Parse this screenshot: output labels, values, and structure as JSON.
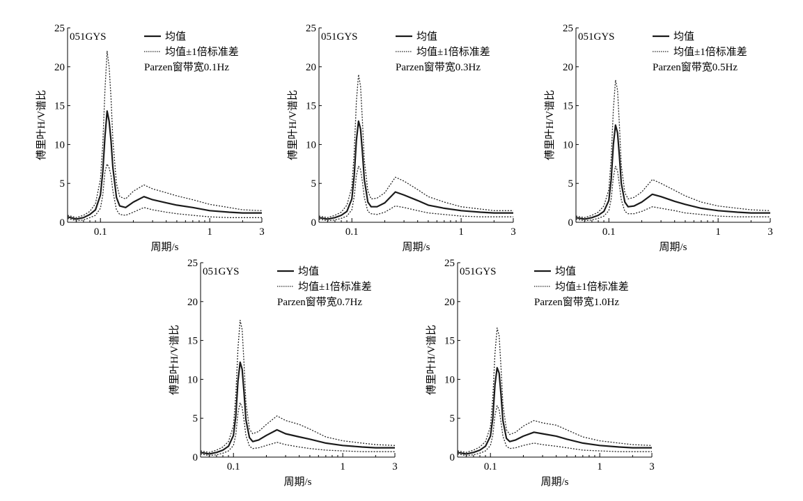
{
  "chart_data": [
    {
      "type": "line",
      "station": "051GYS",
      "bandwidth_label": "Parzen窗带宽0.1Hz",
      "xlabel": "周期/s",
      "ylabel": "傅里叶H/V谱比",
      "xscale": "log",
      "xlim": [
        0.05,
        3
      ],
      "ylim": [
        0,
        25
      ],
      "xticks": [
        "0.1",
        "1",
        "3"
      ],
      "yticks": [
        "0",
        "5",
        "10",
        "15",
        "20",
        "25"
      ],
      "legend": [
        "均值",
        "均值±1倍标准差"
      ],
      "x": [
        0.05,
        0.06,
        0.07,
        0.08,
        0.09,
        0.1,
        0.105,
        0.11,
        0.115,
        0.12,
        0.125,
        0.13,
        0.14,
        0.15,
        0.17,
        0.2,
        0.25,
        0.3,
        0.4,
        0.5,
        0.7,
        1.0,
        1.5,
        2.0,
        3.0
      ],
      "series": [
        {
          "name": "均值",
          "values": [
            0.7,
            0.4,
            0.6,
            1.0,
            1.6,
            3.5,
            6.5,
            11.0,
            14.3,
            13.0,
            10.5,
            7.0,
            3.2,
            2.1,
            1.9,
            2.6,
            3.3,
            2.9,
            2.5,
            2.2,
            1.9,
            1.5,
            1.3,
            1.2,
            1.2
          ]
        },
        {
          "name": "均值+1倍标准差",
          "values": [
            0.9,
            0.6,
            0.9,
            1.4,
            2.4,
            5.5,
            10.0,
            17.0,
            22.0,
            20.0,
            16.0,
            10.5,
            5.0,
            3.3,
            3.0,
            4.0,
            4.8,
            4.3,
            3.8,
            3.4,
            2.9,
            2.3,
            1.9,
            1.6,
            1.5
          ]
        },
        {
          "name": "均值-1倍标准差",
          "values": [
            0.5,
            0.2,
            0.3,
            0.6,
            0.9,
            1.8,
            3.5,
            6.5,
            7.5,
            7.0,
            6.0,
            4.0,
            1.6,
            1.0,
            0.9,
            1.3,
            1.9,
            1.6,
            1.3,
            1.1,
            0.9,
            0.7,
            0.6,
            0.6,
            0.6
          ]
        }
      ]
    },
    {
      "type": "line",
      "station": "051GYS",
      "bandwidth_label": "Parzen窗带宽0.3Hz",
      "xlabel": "周期/s",
      "ylabel": "傅里叶H/V谱比",
      "xscale": "log",
      "xlim": [
        0.05,
        3
      ],
      "ylim": [
        0,
        25
      ],
      "xticks": [
        "0.1",
        "1",
        "3"
      ],
      "yticks": [
        "0",
        "5",
        "10",
        "15",
        "20",
        "25"
      ],
      "legend": [
        "均值",
        "均值±1倍标准差"
      ],
      "x": [
        0.05,
        0.06,
        0.07,
        0.08,
        0.09,
        0.1,
        0.105,
        0.11,
        0.115,
        0.12,
        0.125,
        0.13,
        0.14,
        0.15,
        0.17,
        0.2,
        0.25,
        0.3,
        0.4,
        0.5,
        0.7,
        1.0,
        1.5,
        2.0,
        3.0
      ],
      "series": [
        {
          "name": "均值",
          "values": [
            0.6,
            0.4,
            0.6,
            0.9,
            1.4,
            3.0,
            6.0,
            10.5,
            13.0,
            12.0,
            9.0,
            5.5,
            2.6,
            2.0,
            2.0,
            2.5,
            3.9,
            3.5,
            2.8,
            2.2,
            1.8,
            1.5,
            1.3,
            1.2,
            1.2
          ]
        },
        {
          "name": "均值+1倍标准差",
          "values": [
            0.8,
            0.6,
            0.9,
            1.3,
            2.2,
            4.5,
            9.0,
            15.5,
            19.0,
            17.5,
            13.0,
            8.0,
            4.0,
            3.0,
            3.1,
            3.8,
            5.8,
            5.3,
            4.2,
            3.3,
            2.6,
            2.0,
            1.7,
            1.5,
            1.5
          ]
        },
        {
          "name": "均值-1倍标准差",
          "values": [
            0.4,
            0.2,
            0.3,
            0.5,
            0.8,
            1.6,
            3.3,
            6.0,
            7.2,
            6.8,
            5.2,
            3.2,
            1.4,
            1.1,
            1.0,
            1.3,
            2.1,
            1.9,
            1.5,
            1.2,
            1.0,
            0.8,
            0.7,
            0.7,
            0.7
          ]
        }
      ]
    },
    {
      "type": "line",
      "station": "051GYS",
      "bandwidth_label": "Parzen窗带宽0.5Hz",
      "xlabel": "周期/s",
      "ylabel": "傅里叶H/V谱比",
      "xscale": "log",
      "xlim": [
        0.05,
        3
      ],
      "ylim": [
        0,
        25
      ],
      "xticks": [
        "0.1",
        "1",
        "3"
      ],
      "yticks": [
        "0",
        "5",
        "10",
        "15",
        "20",
        "25"
      ],
      "legend": [
        "均值",
        "均值±1倍标准差"
      ],
      "x": [
        0.05,
        0.06,
        0.07,
        0.08,
        0.09,
        0.1,
        0.105,
        0.11,
        0.115,
        0.12,
        0.125,
        0.13,
        0.14,
        0.15,
        0.17,
        0.2,
        0.25,
        0.3,
        0.4,
        0.5,
        0.7,
        1.0,
        1.5,
        2.0,
        3.0
      ],
      "series": [
        {
          "name": "均值",
          "values": [
            0.6,
            0.4,
            0.6,
            0.9,
            1.4,
            2.8,
            5.5,
            10.0,
            12.5,
            11.5,
            8.5,
            5.0,
            2.6,
            2.0,
            2.1,
            2.6,
            3.6,
            3.3,
            2.7,
            2.3,
            1.8,
            1.5,
            1.3,
            1.2,
            1.2
          ]
        },
        {
          "name": "均值+1倍标准差",
          "values": [
            0.8,
            0.6,
            0.9,
            1.3,
            2.1,
            4.2,
            8.3,
            14.5,
            18.3,
            17.0,
            12.5,
            7.3,
            3.8,
            3.0,
            3.2,
            3.9,
            5.5,
            5.0,
            4.1,
            3.4,
            2.6,
            2.1,
            1.8,
            1.6,
            1.5
          ]
        },
        {
          "name": "均值-1倍标准差",
          "values": [
            0.4,
            0.2,
            0.3,
            0.5,
            0.8,
            1.5,
            3.0,
            5.8,
            7.2,
            6.6,
            4.8,
            2.9,
            1.4,
            1.1,
            1.1,
            1.4,
            2.0,
            1.8,
            1.5,
            1.2,
            1.0,
            0.8,
            0.7,
            0.7,
            0.7
          ]
        }
      ]
    },
    {
      "type": "line",
      "station": "051GYS",
      "bandwidth_label": "Parzen窗带宽0.7Hz",
      "xlabel": "周期/s",
      "ylabel": "傅里叶H/V谱比",
      "xscale": "log",
      "xlim": [
        0.05,
        3
      ],
      "ylim": [
        0,
        25
      ],
      "xticks": [
        "0.1",
        "1",
        "3"
      ],
      "yticks": [
        "0",
        "5",
        "10",
        "15",
        "20",
        "25"
      ],
      "legend": [
        "均值",
        "均值±1倍标准差"
      ],
      "x": [
        0.05,
        0.06,
        0.07,
        0.08,
        0.09,
        0.1,
        0.105,
        0.11,
        0.115,
        0.12,
        0.125,
        0.13,
        0.14,
        0.15,
        0.17,
        0.2,
        0.25,
        0.3,
        0.4,
        0.5,
        0.7,
        1.0,
        1.5,
        2.0,
        3.0
      ],
      "series": [
        {
          "name": "均值",
          "values": [
            0.6,
            0.4,
            0.6,
            0.9,
            1.4,
            2.8,
            5.3,
            9.8,
            12.2,
            11.3,
            8.3,
            4.8,
            2.5,
            2.0,
            2.2,
            2.8,
            3.5,
            3.0,
            2.6,
            2.3,
            1.8,
            1.5,
            1.3,
            1.2,
            1.2
          ]
        },
        {
          "name": "均值+1倍标准差",
          "values": [
            0.8,
            0.6,
            0.9,
            1.3,
            2.0,
            4.0,
            8.0,
            14.0,
            17.6,
            16.4,
            12.0,
            7.0,
            3.6,
            3.0,
            3.3,
            4.2,
            5.3,
            4.7,
            4.2,
            3.6,
            2.6,
            2.1,
            1.8,
            1.6,
            1.5
          ]
        },
        {
          "name": "均值-1倍标准差",
          "values": [
            0.4,
            0.2,
            0.3,
            0.5,
            0.8,
            1.5,
            2.9,
            5.7,
            7.0,
            6.4,
            4.7,
            2.8,
            1.4,
            1.1,
            1.2,
            1.5,
            1.9,
            1.6,
            1.3,
            1.1,
            0.9,
            0.8,
            0.7,
            0.7,
            0.7
          ]
        }
      ]
    },
    {
      "type": "line",
      "station": "051GYS",
      "bandwidth_label": "Parzen窗带宽1.0Hz",
      "xlabel": "周期/s",
      "ylabel": "傅里叶H/V谱比",
      "xscale": "log",
      "xlim": [
        0.05,
        3
      ],
      "ylim": [
        0,
        25
      ],
      "xticks": [
        "0.1",
        "1",
        "3"
      ],
      "yticks": [
        "0",
        "5",
        "10",
        "15",
        "20",
        "25"
      ],
      "legend": [
        "均值",
        "均值±1倍标准差"
      ],
      "x": [
        0.05,
        0.06,
        0.07,
        0.08,
        0.09,
        0.1,
        0.105,
        0.11,
        0.115,
        0.12,
        0.125,
        0.13,
        0.14,
        0.15,
        0.17,
        0.2,
        0.25,
        0.3,
        0.4,
        0.5,
        0.7,
        1.0,
        1.5,
        2.0,
        3.0
      ],
      "series": [
        {
          "name": "均值",
          "values": [
            0.6,
            0.4,
            0.6,
            0.9,
            1.4,
            2.7,
            5.0,
            9.3,
            11.5,
            10.8,
            8.0,
            4.7,
            2.4,
            2.0,
            2.2,
            2.7,
            3.2,
            3.0,
            2.7,
            2.3,
            1.8,
            1.5,
            1.3,
            1.2,
            1.2
          ]
        },
        {
          "name": "均值+1倍标准差",
          "values": [
            0.8,
            0.6,
            0.9,
            1.3,
            2.0,
            3.9,
            7.6,
            13.3,
            16.6,
            15.6,
            11.5,
            6.8,
            3.5,
            2.9,
            3.2,
            4.0,
            4.7,
            4.4,
            4.1,
            3.5,
            2.6,
            2.1,
            1.8,
            1.6,
            1.5
          ]
        },
        {
          "name": "均值-1倍标准差",
          "values": [
            0.4,
            0.2,
            0.3,
            0.5,
            0.8,
            1.5,
            2.8,
            5.4,
            6.6,
            6.1,
            4.5,
            2.7,
            1.4,
            1.1,
            1.2,
            1.5,
            1.8,
            1.6,
            1.4,
            1.2,
            0.9,
            0.8,
            0.7,
            0.7,
            0.7
          ]
        }
      ]
    }
  ]
}
